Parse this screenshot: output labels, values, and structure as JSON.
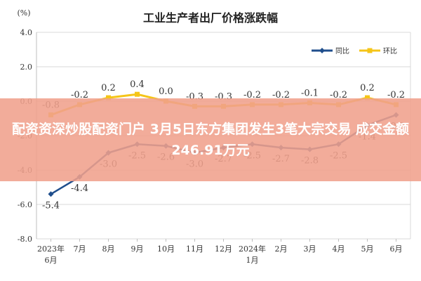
{
  "overlay_text": "配资资深炒股配资门户 3月5日东方集团发生3笔大宗交易 成交金额246.91万元",
  "colors": {
    "yoy": "#1f4e8c",
    "mom": "#f5c518",
    "overlay": "#f0a08c"
  },
  "chart_data": {
    "type": "line",
    "title": "工业生产者出厂价格涨跌幅",
    "unit_label": "(%)",
    "categories": [
      "2023年6月",
      "7月",
      "8月",
      "9月",
      "10月",
      "11月",
      "12月",
      "2024年1月",
      "2月",
      "3月",
      "4月",
      "5月",
      "6月"
    ],
    "series": [
      {
        "name": "同比",
        "values": [
          -5.4,
          -4.4,
          -3.0,
          -2.5,
          -2.6,
          -3.0,
          -2.7,
          -2.5,
          -2.7,
          -2.8,
          -2.5,
          -1.4,
          -0.8
        ]
      },
      {
        "name": "环比",
        "values": [
          -0.8,
          -0.2,
          0.2,
          0.4,
          0.0,
          -0.3,
          -0.3,
          -0.2,
          -0.2,
          -0.1,
          -0.2,
          0.2,
          -0.2
        ]
      }
    ],
    "data_labels": {
      "同比": [
        "-5.4",
        "-4.4",
        "-3.0",
        "-2.5",
        "-2.6",
        "-3.0",
        "-2.7",
        "-2.5",
        "-2.7",
        "-2.8",
        "-2.5",
        "-1.4",
        "-0.8"
      ],
      "环比": [
        "-0.8",
        "-0.2",
        "0.2",
        "0.4",
        "0.0",
        "-0.3",
        "-0.3",
        "-0.2",
        "-0.2",
        "-0.1",
        "-0.2",
        "0.2",
        "-0.2"
      ]
    },
    "yticks": [
      "4.0",
      "2.0",
      "0.0",
      "-2.0",
      "-4.0",
      "-6.0",
      "-8.0"
    ],
    "ylim": [
      -8,
      4
    ],
    "grid": true,
    "legend": "top-right"
  }
}
